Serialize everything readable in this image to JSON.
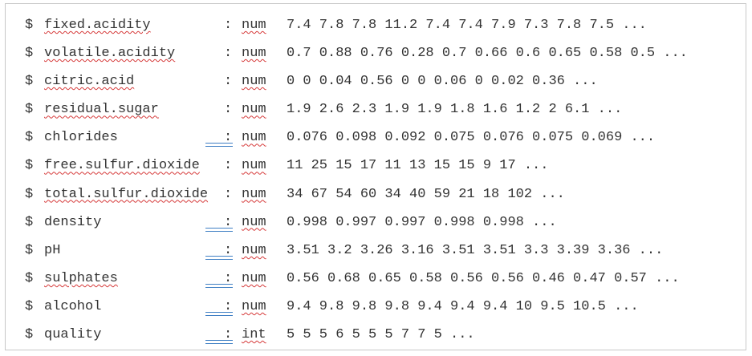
{
  "rows": [
    {
      "prefix": "$",
      "name": "fixed.acidity",
      "sep": ":",
      "type": "num",
      "values": "7.4 7.8 7.8 11.2 7.4 7.4 7.9 7.3 7.8 7.5 ..."
    },
    {
      "prefix": "$",
      "name": "volatile.acidity",
      "sep": ":",
      "type": "num",
      "values": "0.7 0.88 0.76 0.28 0.7 0.66 0.6 0.65 0.58 0.5 ..."
    },
    {
      "prefix": "$",
      "name": "citric.acid",
      "sep": ":",
      "type": "num",
      "values": "0 0 0.04 0.56 0 0 0.06 0 0.02 0.36 ..."
    },
    {
      "prefix": "$",
      "name": "residual.sugar",
      "sep": ":",
      "type": "num",
      "values": "1.9 2.6 2.3 1.9 1.9 1.8 1.6 1.2 2 6.1 ..."
    },
    {
      "prefix": "$",
      "name": "chlorides",
      "sep": ":",
      "type": "num",
      "values": "0.076 0.098 0.092 0.075 0.076 0.075 0.069 ..."
    },
    {
      "prefix": "$",
      "name": "free.sulfur.dioxide",
      "sep": ":",
      "type": "num",
      "values": "11 25 15 17 11 13 15 15 9 17 ..."
    },
    {
      "prefix": "$",
      "name": "total.sulfur.dioxide",
      "sep": ":",
      "type": "num",
      "values": "34 67 54 60 34 40 59 21 18 102 ..."
    },
    {
      "prefix": "$",
      "name": "density",
      "sep": ":",
      "type": "num",
      "values": "0.998 0.997 0.997 0.998 0.998 ..."
    },
    {
      "prefix": "$",
      "name": "pH",
      "sep": ":",
      "type": "num",
      "values": "3.51 3.2 3.26 3.16 3.51 3.51 3.3 3.39 3.36 ..."
    },
    {
      "prefix": "$",
      "name": "sulphates",
      "sep": ":",
      "type": "num",
      "values": "0.56 0.68 0.65 0.58 0.56 0.56 0.46 0.47 0.57 ..."
    },
    {
      "prefix": "$",
      "name": "alcohol",
      "sep": ":",
      "type": "num",
      "values": "9.4 9.8 9.8 9.8 9.4 9.4 9.4 10 9.5 10.5 ..."
    },
    {
      "prefix": "$",
      "name": "quality",
      "sep": ":",
      "type": "int",
      "values": "5 5 5 6 5 5 5 7 7 5 ..."
    }
  ]
}
